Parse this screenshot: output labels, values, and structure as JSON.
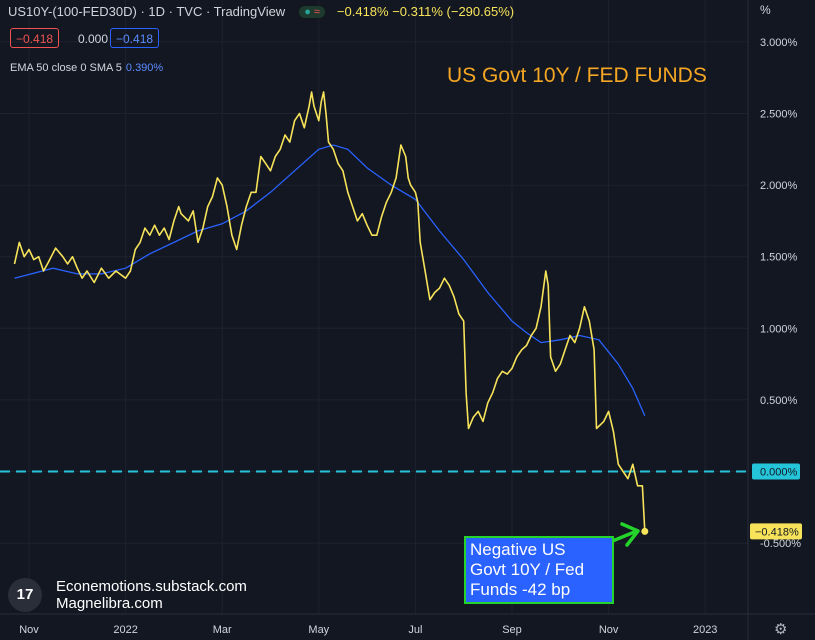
{
  "header": {
    "title": "US10Y-(100-FED30D) · 1D · TVC · TradingView",
    "quote": "−0.418%  −0.311%  (−290.65%)"
  },
  "legend": {
    "pill_red": "−0.418",
    "pill_plain": "0.000",
    "pill_blue": "−0.418",
    "ema_label": "EMA 50 close 0 SMA 5",
    "ema_value": "0.390%"
  },
  "title": "US Govt 10Y / FED FUNDS",
  "callout": {
    "line1": "Negative US",
    "line2": "Govt 10Y / Fed",
    "line3": "Funds -42 bp"
  },
  "watermark": {
    "logo": "17",
    "line1": "Econemotions.substack.com",
    "line2": "Magnelibra.com"
  },
  "axis": {
    "unit_label": "%"
  },
  "icons": {
    "settings": "gear-icon",
    "logo": "tradingview-logo-icon",
    "arrow": "green-arrow-icon"
  },
  "colors": {
    "background": "#131722",
    "spread_line": "#f7e35a",
    "ema_line": "#2962ff",
    "zero_line": "#24c4d9",
    "title": "#f5a623",
    "callout_bg": "#2962ff",
    "callout_border": "#25d42b"
  },
  "chart_data": {
    "type": "line",
    "x_unit": "months since Nov 2021",
    "x_ticks": [
      {
        "label": "Nov",
        "x": 0
      },
      {
        "label": "2022",
        "x": 2
      },
      {
        "label": "Mar",
        "x": 4
      },
      {
        "label": "May",
        "x": 6
      },
      {
        "label": "Jul",
        "x": 8
      },
      {
        "label": "Sep",
        "x": 10
      },
      {
        "label": "Nov",
        "x": 12
      },
      {
        "label": "2023",
        "x": 14
      }
    ],
    "y_ticks": [
      {
        "label": "3.000%",
        "y": 3.0
      },
      {
        "label": "2.500%",
        "y": 2.5
      },
      {
        "label": "2.000%",
        "y": 2.0
      },
      {
        "label": "1.500%",
        "y": 1.5
      },
      {
        "label": "1.000%",
        "y": 1.0
      },
      {
        "label": "0.500%",
        "y": 0.5
      },
      {
        "label": "0.000%",
        "y": 0.0
      },
      {
        "label": "-0.500%",
        "y": -0.5
      }
    ],
    "reference_line": {
      "y": 0.0,
      "label": "0.000%"
    },
    "last_value": {
      "y": -0.418,
      "label": "−0.418%"
    },
    "series": [
      {
        "points": [
          [
            -0.3,
            1.45
          ],
          [
            -0.2,
            1.6
          ],
          [
            -0.1,
            1.5
          ],
          [
            0.0,
            1.55
          ],
          [
            0.1,
            1.48
          ],
          [
            0.2,
            1.5
          ],
          [
            0.3,
            1.4
          ],
          [
            0.4,
            1.46
          ],
          [
            0.55,
            1.56
          ],
          [
            0.7,
            1.5
          ],
          [
            0.8,
            1.45
          ],
          [
            0.9,
            1.5
          ],
          [
            1.0,
            1.42
          ],
          [
            1.1,
            1.35
          ],
          [
            1.2,
            1.4
          ],
          [
            1.35,
            1.32
          ],
          [
            1.5,
            1.42
          ],
          [
            1.65,
            1.35
          ],
          [
            1.8,
            1.4
          ],
          [
            2.0,
            1.35
          ],
          [
            2.1,
            1.4
          ],
          [
            2.2,
            1.55
          ],
          [
            2.3,
            1.6
          ],
          [
            2.4,
            1.7
          ],
          [
            2.5,
            1.65
          ],
          [
            2.6,
            1.72
          ],
          [
            2.7,
            1.65
          ],
          [
            2.8,
            1.7
          ],
          [
            2.9,
            1.62
          ],
          [
            3.0,
            1.75
          ],
          [
            3.1,
            1.85
          ],
          [
            3.15,
            1.8
          ],
          [
            3.3,
            1.75
          ],
          [
            3.4,
            1.82
          ],
          [
            3.5,
            1.6
          ],
          [
            3.6,
            1.7
          ],
          [
            3.7,
            1.85
          ],
          [
            3.8,
            1.92
          ],
          [
            3.9,
            2.05
          ],
          [
            4.0,
            2.0
          ],
          [
            4.1,
            1.85
          ],
          [
            4.2,
            1.65
          ],
          [
            4.3,
            1.55
          ],
          [
            4.4,
            1.72
          ],
          [
            4.5,
            1.85
          ],
          [
            4.6,
            1.95
          ],
          [
            4.7,
            1.95
          ],
          [
            4.8,
            2.2
          ],
          [
            4.9,
            2.15
          ],
          [
            5.0,
            2.1
          ],
          [
            5.1,
            2.2
          ],
          [
            5.2,
            2.25
          ],
          [
            5.3,
            2.35
          ],
          [
            5.4,
            2.3
          ],
          [
            5.5,
            2.45
          ],
          [
            5.6,
            2.5
          ],
          [
            5.7,
            2.4
          ],
          [
            5.8,
            2.55
          ],
          [
            5.85,
            2.65
          ],
          [
            5.9,
            2.55
          ],
          [
            6.0,
            2.45
          ],
          [
            6.05,
            2.58
          ],
          [
            6.1,
            2.65
          ],
          [
            6.15,
            2.5
          ],
          [
            6.2,
            2.3
          ],
          [
            6.3,
            2.25
          ],
          [
            6.4,
            2.15
          ],
          [
            6.5,
            2.1
          ],
          [
            6.6,
            1.95
          ],
          [
            6.7,
            1.85
          ],
          [
            6.8,
            1.75
          ],
          [
            6.9,
            1.8
          ],
          [
            7.0,
            1.72
          ],
          [
            7.1,
            1.65
          ],
          [
            7.2,
            1.65
          ],
          [
            7.3,
            1.78
          ],
          [
            7.4,
            1.88
          ],
          [
            7.5,
            1.95
          ],
          [
            7.6,
            2.05
          ],
          [
            7.7,
            2.28
          ],
          [
            7.8,
            2.2
          ],
          [
            7.85,
            2.05
          ],
          [
            7.9,
            2.0
          ],
          [
            8.0,
            1.95
          ],
          [
            8.05,
            1.88
          ],
          [
            8.1,
            1.6
          ],
          [
            8.2,
            1.4
          ],
          [
            8.3,
            1.2
          ],
          [
            8.4,
            1.25
          ],
          [
            8.5,
            1.28
          ],
          [
            8.6,
            1.35
          ],
          [
            8.7,
            1.3
          ],
          [
            8.8,
            1.22
          ],
          [
            8.9,
            1.1
          ],
          [
            9.0,
            1.05
          ],
          [
            9.05,
            0.55
          ],
          [
            9.1,
            0.3
          ],
          [
            9.2,
            0.38
          ],
          [
            9.3,
            0.42
          ],
          [
            9.4,
            0.35
          ],
          [
            9.5,
            0.48
          ],
          [
            9.6,
            0.55
          ],
          [
            9.7,
            0.65
          ],
          [
            9.8,
            0.7
          ],
          [
            9.9,
            0.68
          ],
          [
            10.0,
            0.72
          ],
          [
            10.1,
            0.8
          ],
          [
            10.2,
            0.85
          ],
          [
            10.3,
            0.88
          ],
          [
            10.4,
            0.95
          ],
          [
            10.5,
            1.0
          ],
          [
            10.6,
            1.15
          ],
          [
            10.7,
            1.4
          ],
          [
            10.75,
            1.3
          ],
          [
            10.8,
            0.8
          ],
          [
            10.9,
            0.7
          ],
          [
            11.0,
            0.75
          ],
          [
            11.1,
            0.85
          ],
          [
            11.2,
            0.95
          ],
          [
            11.3,
            0.9
          ],
          [
            11.4,
            1.0
          ],
          [
            11.5,
            1.15
          ],
          [
            11.6,
            1.05
          ],
          [
            11.7,
            0.85
          ],
          [
            11.75,
            0.3
          ],
          [
            11.9,
            0.35
          ],
          [
            12.0,
            0.42
          ],
          [
            12.1,
            0.28
          ],
          [
            12.2,
            0.05
          ],
          [
            12.3,
            0.0
          ],
          [
            12.4,
            -0.05
          ],
          [
            12.5,
            0.05
          ],
          [
            12.6,
            -0.1
          ],
          [
            12.7,
            -0.1
          ],
          [
            12.75,
            -0.418
          ]
        ]
      },
      {
        "points": [
          [
            -0.3,
            1.35
          ],
          [
            0.5,
            1.42
          ],
          [
            1.0,
            1.38
          ],
          [
            1.5,
            1.38
          ],
          [
            2.0,
            1.42
          ],
          [
            2.5,
            1.52
          ],
          [
            3.0,
            1.6
          ],
          [
            3.5,
            1.68
          ],
          [
            4.0,
            1.73
          ],
          [
            4.5,
            1.82
          ],
          [
            5.0,
            1.95
          ],
          [
            5.5,
            2.1
          ],
          [
            6.0,
            2.25
          ],
          [
            6.3,
            2.28
          ],
          [
            6.6,
            2.25
          ],
          [
            7.0,
            2.12
          ],
          [
            7.5,
            2.0
          ],
          [
            8.0,
            1.9
          ],
          [
            8.5,
            1.68
          ],
          [
            9.0,
            1.48
          ],
          [
            9.5,
            1.25
          ],
          [
            10.0,
            1.05
          ],
          [
            10.3,
            0.97
          ],
          [
            10.6,
            0.9
          ],
          [
            11.0,
            0.92
          ],
          [
            11.4,
            0.95
          ],
          [
            11.8,
            0.92
          ],
          [
            12.2,
            0.75
          ],
          [
            12.5,
            0.58
          ],
          [
            12.75,
            0.39
          ]
        ]
      }
    ]
  }
}
